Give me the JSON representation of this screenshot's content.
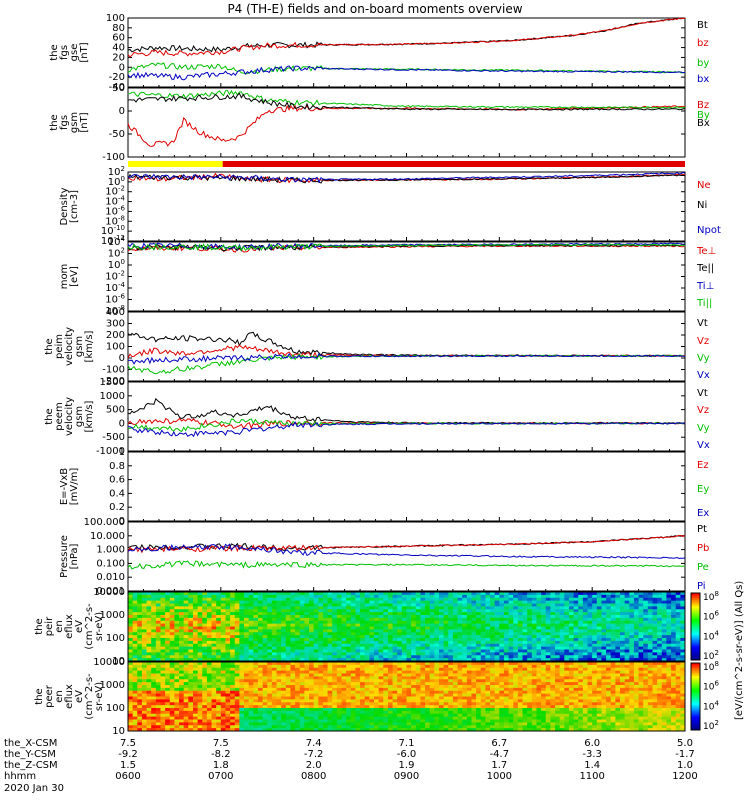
{
  "title": "P4 (TH-E) fields and on-board moments overview",
  "date": "2020 Jan 30",
  "colors": {
    "black": "#000000",
    "red": "#e00000",
    "green": "#00c000",
    "blue": "#0000c0",
    "yellow": "#ffff00"
  },
  "chart_data": [
    {
      "type": "line",
      "id": "fgs-gse",
      "ylabel": [
        "the",
        "fgs",
        "gse",
        "[nT]"
      ],
      "yticks": [
        100,
        80,
        60,
        40,
        20,
        0,
        -20,
        -40
      ],
      "ylim": [
        -40,
        100
      ],
      "series": [
        {
          "name": "Bt",
          "color": "#000000",
          "x": [
            0,
            0.05,
            0.1,
            0.17,
            0.2,
            0.25,
            0.3,
            0.4,
            0.5,
            0.6,
            0.7,
            0.8,
            0.86,
            0.92,
            1.0
          ],
          "values": [
            35,
            40,
            38,
            36,
            42,
            45,
            45,
            46,
            47,
            50,
            55,
            65,
            75,
            90,
            100
          ]
        },
        {
          "name": "bz",
          "color": "#e00000",
          "x": [
            0,
            0.05,
            0.1,
            0.17,
            0.2,
            0.25,
            0.3,
            0.4,
            0.5,
            0.6,
            0.7,
            0.8,
            0.86,
            0.92,
            1.0
          ],
          "values": [
            25,
            30,
            28,
            32,
            38,
            44,
            45,
            46,
            47,
            50,
            55,
            65,
            75,
            90,
            100
          ]
        },
        {
          "name": "by",
          "color": "#00c000",
          "x": [
            0,
            0.05,
            0.1,
            0.17,
            0.2,
            0.25,
            0.3,
            0.5,
            0.7,
            1.0
          ],
          "values": [
            -5,
            5,
            0,
            3,
            -10,
            -5,
            -2,
            -4,
            -6,
            -10
          ]
        },
        {
          "name": "bx",
          "color": "#0000c0",
          "x": [
            0,
            0.1,
            0.2,
            0.25,
            0.3,
            0.5,
            0.7,
            1.0
          ],
          "values": [
            -15,
            -20,
            -10,
            -5,
            -2,
            -5,
            -8,
            -10
          ]
        }
      ]
    },
    {
      "type": "line",
      "id": "fgs-gsm",
      "ylabel": [
        "the",
        "fgs",
        "gsm",
        "[nT]"
      ],
      "yticks": [
        50,
        0,
        -50,
        -100
      ],
      "ylim": [
        -120,
        50
      ],
      "series": [
        {
          "name": "Bz",
          "color": "#e00000",
          "x": [
            0,
            0.04,
            0.08,
            0.1,
            0.13,
            0.17,
            0.2,
            0.25,
            0.3,
            0.5,
            0.7,
            1.0
          ],
          "values": [
            -40,
            -90,
            -85,
            -30,
            -60,
            -80,
            -70,
            -5,
            0,
            0,
            -3,
            5
          ]
        },
        {
          "name": "By",
          "color": "#00c000",
          "x": [
            0,
            0.1,
            0.2,
            0.25,
            0.3,
            0.5,
            0.7,
            1.0
          ],
          "values": [
            35,
            30,
            40,
            20,
            15,
            5,
            3,
            2
          ]
        },
        {
          "name": "Bx",
          "color": "#000000",
          "x": [
            0,
            0.1,
            0.2,
            0.25,
            0.3,
            0.5,
            0.7,
            1.0
          ],
          "values": [
            20,
            25,
            30,
            15,
            5,
            -2,
            -3,
            -2
          ]
        }
      ]
    },
    {
      "type": "line",
      "id": "density",
      "log": true,
      "ylabel": [
        "Density",
        "[cm-3]"
      ],
      "yticks": [
        "10^2",
        "10^0",
        "10^-2",
        "10^-4",
        "10^-6",
        "10^-8",
        "10^-10",
        "10^-12"
      ],
      "ylim": [
        -12,
        2
      ],
      "series": [
        {
          "name": "Ne",
          "color": "#e00000",
          "x": [
            0,
            0.05,
            0.1,
            0.17,
            0.2,
            0.3,
            0.5,
            0.7,
            0.9,
            1.0
          ],
          "values": [
            1,
            0.5,
            0.8,
            1.2,
            0.6,
            0.3,
            0.4,
            0.6,
            1.1,
            1.5
          ]
        },
        {
          "name": "Ni",
          "color": "#000000",
          "x": [
            0,
            0.1,
            0.2,
            0.3,
            0.5,
            0.8,
            1.0
          ],
          "values": [
            1,
            0.9,
            0.7,
            0.3,
            0.4,
            0.8,
            1.4
          ]
        },
        {
          "name": "Npot",
          "color": "#0000c0",
          "x": [
            0,
            0.1,
            0.2,
            0.3,
            0.5,
            0.8,
            1.0
          ],
          "values": [
            1.1,
            1.0,
            0.9,
            0.4,
            0.6,
            1.2,
            1.8
          ]
        }
      ]
    },
    {
      "type": "line",
      "id": "temperature",
      "log": true,
      "ylabel": [
        "mom",
        "[eV]"
      ],
      "yticks": [
        "10^4",
        "10^2",
        "10^0",
        "10^-2",
        "10^-4",
        "10^-6",
        "10^-8"
      ],
      "ylim": [
        -8,
        4
      ],
      "series": [
        {
          "name": "Te⊥",
          "color": "#e00000",
          "x": [
            0,
            0.1,
            0.2,
            0.3,
            0.5,
            0.7,
            1.0
          ],
          "values": [
            2.8,
            3,
            2.7,
            3,
            3.2,
            3.3,
            3.3
          ]
        },
        {
          "name": "Te||",
          "color": "#000000",
          "x": [
            0,
            0.1,
            0.2,
            0.3,
            0.5,
            0.7,
            1.0
          ],
          "values": [
            3,
            3.1,
            2.9,
            3.1,
            3.3,
            3.4,
            3.4
          ]
        },
        {
          "name": "Ti⊥",
          "color": "#0000c0",
          "x": [
            0,
            0.1,
            0.2,
            0.3,
            0.5,
            0.7,
            1.0
          ],
          "values": [
            3.4,
            3.3,
            3.1,
            3.3,
            3.5,
            3.6,
            3.7
          ]
        },
        {
          "name": "Ti||",
          "color": "#00c000",
          "x": [
            0,
            0.1,
            0.2,
            0.3,
            0.5,
            0.7,
            1.0
          ],
          "values": [
            3.2,
            3.2,
            3.0,
            3.2,
            3.4,
            3.5,
            3.5
          ]
        }
      ]
    },
    {
      "type": "line",
      "id": "peim-velocity",
      "ylabel": [
        "the",
        "peim",
        "velocity",
        "gsm",
        "[km/s]"
      ],
      "yticks": [
        400,
        300,
        200,
        100,
        0,
        -100,
        -200
      ],
      "ylim": [
        -230,
        400
      ],
      "series": [
        {
          "name": "Vt",
          "color": "#000000",
          "x": [
            0,
            0.05,
            0.1,
            0.17,
            0.2,
            0.22,
            0.3,
            0.4,
            0.5,
            1.0
          ],
          "values": [
            200,
            150,
            160,
            150,
            120,
            200,
            40,
            15,
            5,
            0
          ]
        },
        {
          "name": "Vz",
          "color": "#e00000",
          "x": [
            0,
            0.05,
            0.1,
            0.2,
            0.3,
            0.5,
            1.0
          ],
          "values": [
            0,
            50,
            20,
            80,
            10,
            0,
            0
          ]
        },
        {
          "name": "Vy",
          "color": "#00c000",
          "x": [
            0,
            0.05,
            0.1,
            0.2,
            0.3,
            0.5,
            1.0
          ],
          "values": [
            -100,
            -150,
            -120,
            -50,
            -10,
            0,
            0
          ]
        },
        {
          "name": "Vx",
          "color": "#0000c0",
          "x": [
            0,
            0.1,
            0.2,
            0.3,
            1.0
          ],
          "values": [
            -50,
            -30,
            -20,
            -5,
            0
          ]
        }
      ]
    },
    {
      "type": "line",
      "id": "peem-velocity",
      "ylabel": [
        "the",
        "peem",
        "velocity",
        "gsm",
        "[km/s]"
      ],
      "yticks": [
        1500,
        1000,
        500,
        0,
        -500,
        -1000
      ],
      "ylim": [
        -1000,
        1500
      ],
      "series": [
        {
          "name": "Vt",
          "color": "#000000",
          "x": [
            0,
            0.05,
            0.1,
            0.15,
            0.2,
            0.25,
            0.3,
            0.4,
            0.5,
            1.0
          ],
          "values": [
            300,
            800,
            200,
            400,
            300,
            600,
            200,
            60,
            20,
            10
          ]
        },
        {
          "name": "Vz",
          "color": "#e00000",
          "x": [
            0,
            0.1,
            0.2,
            0.3,
            0.5,
            1.0
          ],
          "values": [
            50,
            100,
            -100,
            30,
            0,
            0
          ]
        },
        {
          "name": "Vy",
          "color": "#00c000",
          "x": [
            0,
            0.1,
            0.2,
            0.3,
            0.5,
            1.0
          ],
          "values": [
            -100,
            -200,
            100,
            -20,
            0,
            0
          ]
        },
        {
          "name": "Vx",
          "color": "#0000c0",
          "x": [
            0,
            0.1,
            0.2,
            0.3,
            0.5,
            1.0
          ],
          "values": [
            -200,
            -400,
            -300,
            -50,
            -10,
            0
          ]
        }
      ]
    },
    {
      "type": "line",
      "id": "efield",
      "ylabel": [
        "E=-VxB",
        "[mV/m]"
      ],
      "yticks": [
        1.0,
        0.8,
        0.6,
        0.4,
        0.2,
        0.0
      ],
      "ylim": [
        0,
        1.0
      ],
      "series": [
        {
          "name": "Ez",
          "color": "#e00000",
          "x": [],
          "values": []
        },
        {
          "name": "Ey",
          "color": "#00c000",
          "x": [],
          "values": []
        },
        {
          "name": "Ex",
          "color": "#0000c0",
          "x": [],
          "values": []
        }
      ]
    },
    {
      "type": "line",
      "id": "pressure",
      "log": true,
      "ylabel": [
        "Pressure",
        "[nPa]"
      ],
      "yticks": [
        "100.000",
        "10.000",
        "1.000",
        "0.100",
        "0.010",
        "0.001"
      ],
      "ylim": [
        -3,
        2
      ],
      "series": [
        {
          "name": "Pt",
          "color": "#000000",
          "x": [
            0,
            0.1,
            0.2,
            0.3,
            0.5,
            0.7,
            0.85,
            1.0
          ],
          "values": [
            0.15,
            0.2,
            0.25,
            0.1,
            0.25,
            0.4,
            0.6,
            1.0
          ]
        },
        {
          "name": "Pb",
          "color": "#e00000",
          "x": [
            0,
            0.1,
            0.2,
            0.3,
            0.5,
            0.7,
            0.85,
            1.0
          ],
          "values": [
            0.0,
            0.05,
            0.1,
            0.1,
            0.25,
            0.4,
            0.6,
            1.0
          ]
        },
        {
          "name": "Pe",
          "color": "#00c000",
          "x": [
            0,
            0.1,
            0.2,
            0.3,
            0.5,
            0.7,
            1.0
          ],
          "values": [
            -1.3,
            -1.0,
            -1.1,
            -1.1,
            -1.1,
            -1.15,
            -1.2
          ]
        },
        {
          "name": "Pi",
          "color": "#0000c0",
          "x": [
            0,
            0.1,
            0.2,
            0.3,
            0.5,
            0.7,
            1.0
          ],
          "values": [
            0.05,
            0.15,
            0.2,
            -0.2,
            -0.4,
            -0.5,
            -0.6
          ]
        }
      ]
    },
    {
      "type": "heatmap",
      "id": "peir-spectrum",
      "ylabel": [
        "the",
        "peir",
        "en",
        "eflux",
        "eV",
        "(cm^2-s-",
        "sr-eV)"
      ],
      "yticks": [
        "10000",
        "1000",
        "100",
        "10"
      ]
    },
    {
      "type": "heatmap",
      "id": "peer-spectrum",
      "ylabel": [
        "the",
        "peer",
        "en",
        "eflux",
        "eV",
        "(cm^2-s-",
        "sr-eV)"
      ],
      "yticks": [
        "10000",
        "1000",
        "100",
        "10"
      ]
    }
  ],
  "colorbar": {
    "labels": [
      "10^8",
      "10^6",
      "10^4",
      "10^2"
    ],
    "title": "[eV/(cm^2-s-sr-eV)] (All Qs)"
  },
  "footer": {
    "rows": [
      "the_X-CSM",
      "the_Y-CSM",
      "the_Z-CSM",
      "hhmm"
    ],
    "columns": [
      {
        "vals": [
          "7.5",
          "-9.2",
          "1.5",
          "0600"
        ]
      },
      {
        "vals": [
          "7.5",
          "-8.2",
          "1.8",
          "0700"
        ]
      },
      {
        "vals": [
          "7.4",
          "-7.2",
          "2.0",
          "0800"
        ]
      },
      {
        "vals": [
          "7.1",
          "-6.0",
          "1.9",
          "0900"
        ]
      },
      {
        "vals": [
          "6.7",
          "-4.7",
          "1.7",
          "1000"
        ]
      },
      {
        "vals": [
          "6.0",
          "-3.3",
          "1.4",
          "1100"
        ]
      },
      {
        "vals": [
          "5.0",
          "-1.7",
          "1.0",
          "1200"
        ]
      }
    ]
  }
}
